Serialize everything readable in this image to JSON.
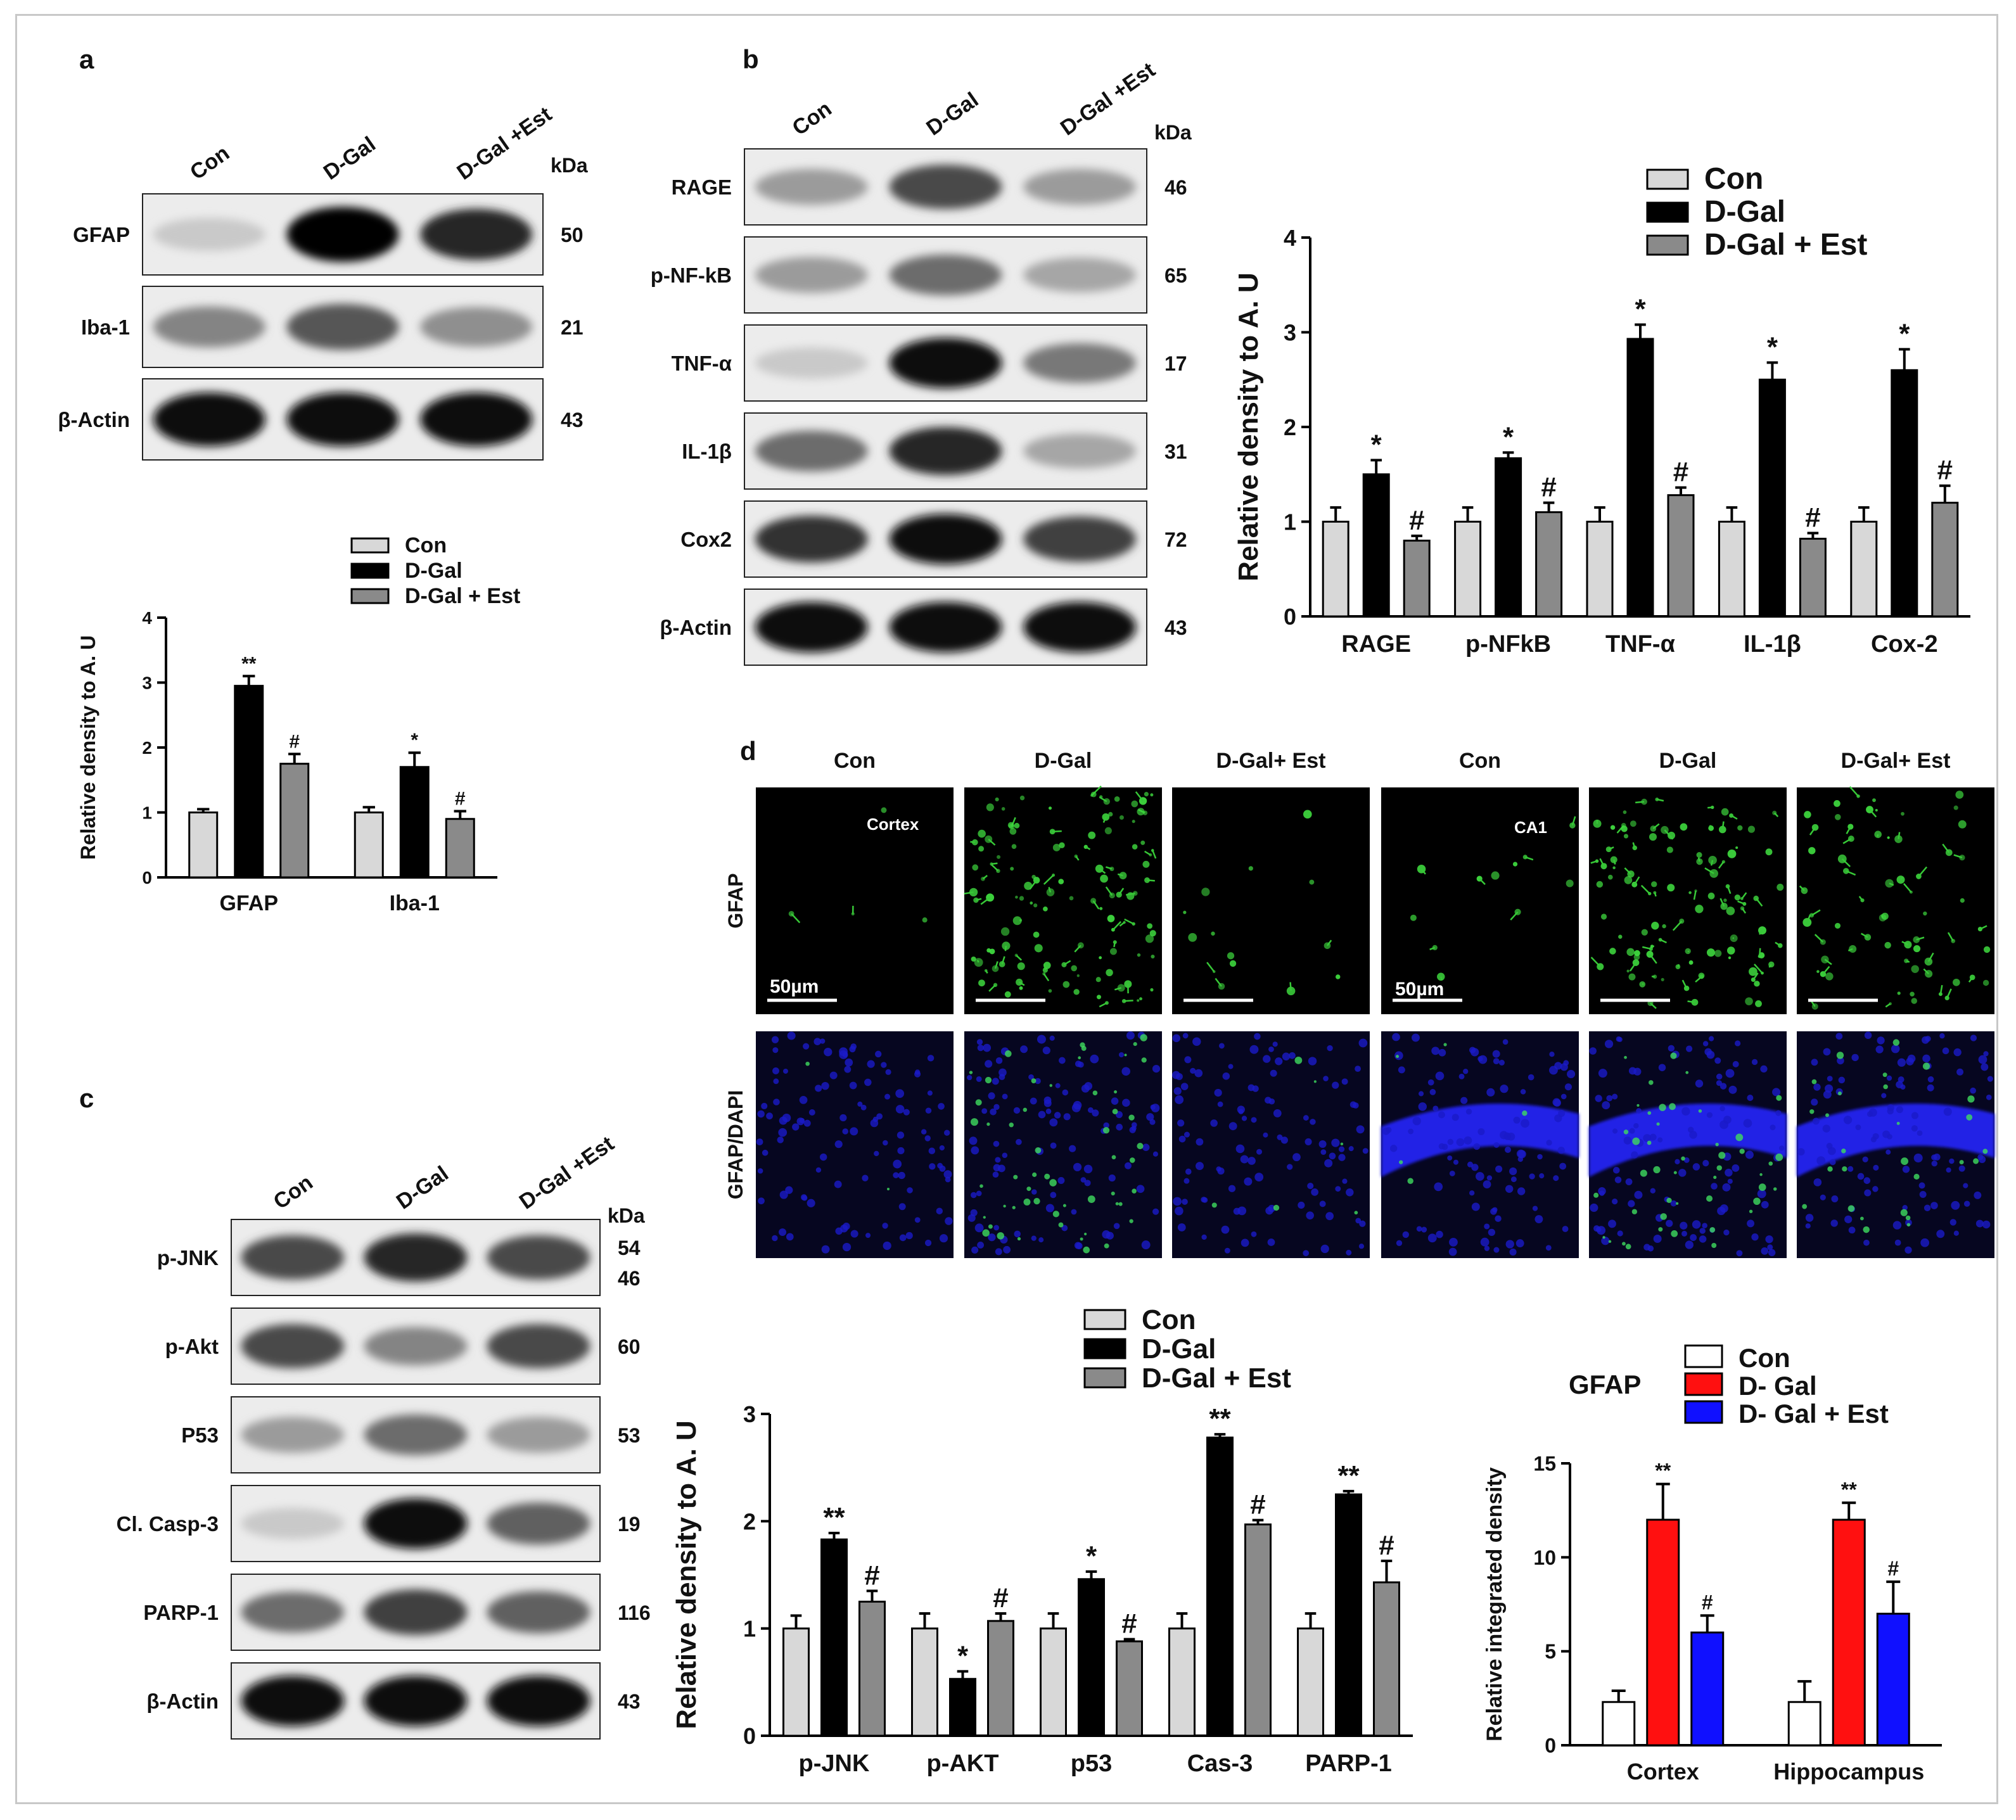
{
  "panel_letters": {
    "a": "a",
    "b": "b",
    "c": "c",
    "d": "d"
  },
  "units": {
    "kda": "kDa"
  },
  "lanes": [
    "Con",
    "D-Gal",
    "D-Gal +Est"
  ],
  "blot_a": {
    "rows": [
      {
        "label": "GFAP",
        "kda": "50",
        "intensity": [
          0.15,
          1.0,
          0.85
        ]
      },
      {
        "label": "Iba-1",
        "kda": "21",
        "intensity": [
          0.45,
          0.65,
          0.4
        ]
      },
      {
        "label": "β-Actin",
        "kda": "43",
        "intensity": [
          0.95,
          0.95,
          0.95
        ]
      }
    ]
  },
  "blot_b": {
    "rows": [
      {
        "label": "RAGE",
        "kda": "46",
        "intensity": [
          0.35,
          0.7,
          0.35
        ]
      },
      {
        "label": "p-NF-kB",
        "kda": "65",
        "intensity": [
          0.35,
          0.55,
          0.3
        ]
      },
      {
        "label": "TNF-α",
        "kda": "17",
        "intensity": [
          0.15,
          0.95,
          0.5
        ]
      },
      {
        "label": "IL-1β",
        "kda": "31",
        "intensity": [
          0.55,
          0.85,
          0.3
        ]
      },
      {
        "label": "Cox2",
        "kda": "72",
        "intensity": [
          0.8,
          0.95,
          0.75
        ]
      },
      {
        "label": "β-Actin",
        "kda": "43",
        "intensity": [
          0.95,
          0.95,
          0.95
        ]
      }
    ]
  },
  "blot_c": {
    "rows": [
      {
        "label": "p-JNK",
        "kda": "54",
        "kda2": "46",
        "intensity": [
          0.7,
          0.85,
          0.7
        ]
      },
      {
        "label": "p-Akt",
        "kda": "60",
        "intensity": [
          0.7,
          0.45,
          0.7
        ]
      },
      {
        "label": "P53",
        "kda": "53",
        "intensity": [
          0.35,
          0.55,
          0.35
        ]
      },
      {
        "label": "Cl. Casp-3",
        "kda": "19",
        "intensity": [
          0.15,
          0.95,
          0.6
        ]
      },
      {
        "label": "PARP-1",
        "kda": "116",
        "intensity": [
          0.55,
          0.75,
          0.6
        ]
      },
      {
        "label": "β-Actin",
        "kda": "43",
        "intensity": [
          0.95,
          0.95,
          0.95
        ]
      }
    ]
  },
  "micro": {
    "headers": [
      "Con",
      "D-Gal",
      "D-Gal+ Est",
      "Con",
      "D-Gal",
      "D-Gal+ Est"
    ],
    "row_labels": [
      "GFAP",
      "GFAP/DAPI"
    ],
    "region_labels": {
      "cortex": "Cortex",
      "ca1": "CA1"
    },
    "scale_bar": "50µm",
    "green_level": [
      0.03,
      0.9,
      0.1,
      0.08,
      0.75,
      0.45
    ]
  },
  "chart_data": [
    {
      "type": "bar",
      "categories": [
        "GFAP",
        "Iba-1"
      ],
      "series": [
        {
          "name": "Con",
          "values": [
            1.0,
            1.0
          ],
          "err": [
            0.05,
            0.08
          ]
        },
        {
          "name": "D-Gal",
          "values": [
            2.95,
            1.7
          ],
          "err": [
            0.15,
            0.22
          ]
        },
        {
          "name": "D-Gal + Est",
          "values": [
            1.75,
            0.9
          ],
          "err": [
            0.15,
            0.12
          ]
        }
      ],
      "annotations": [
        [
          "",
          "**",
          "#"
        ],
        [
          "",
          "*",
          "#"
        ]
      ],
      "ylabel": "Relative density to A. U",
      "ylim": [
        0,
        4
      ],
      "yticks": [
        "0",
        "1",
        "2",
        "3",
        "4"
      ],
      "colors": [
        "#d8d8d8",
        "#000000",
        "#8a8a8a"
      ]
    },
    {
      "type": "bar",
      "categories": [
        "RAGE",
        "p-NFkB",
        "TNF-α",
        "IL-1β",
        "Cox-2"
      ],
      "series": [
        {
          "name": "Con",
          "values": [
            1.0,
            1.0,
            1.0,
            1.0,
            1.0
          ],
          "err": [
            0.15,
            0.15,
            0.15,
            0.15,
            0.15
          ]
        },
        {
          "name": "D-Gal",
          "values": [
            1.5,
            1.67,
            2.93,
            2.5,
            2.6
          ],
          "err": [
            0.15,
            0.06,
            0.15,
            0.18,
            0.22
          ]
        },
        {
          "name": "D-Gal + Est",
          "values": [
            0.8,
            1.1,
            1.28,
            0.82,
            1.2
          ],
          "err": [
            0.05,
            0.1,
            0.08,
            0.06,
            0.18
          ]
        }
      ],
      "annotations": [
        [
          "",
          "*",
          "#"
        ],
        [
          "",
          "*",
          "#"
        ],
        [
          "",
          "*",
          "#"
        ],
        [
          "",
          "*",
          "#"
        ],
        [
          "",
          "*",
          "#"
        ]
      ],
      "ylabel": "Relative density to A. U",
      "ylim": [
        0,
        4
      ],
      "yticks": [
        "0",
        "1",
        "2",
        "3",
        "4"
      ],
      "colors": [
        "#d8d8d8",
        "#000000",
        "#8a8a8a"
      ]
    },
    {
      "type": "bar",
      "categories": [
        "p-JNK",
        "p-AKT",
        "p53",
        "Cas-3",
        "PARP-1"
      ],
      "series": [
        {
          "name": "Con",
          "values": [
            1.0,
            1.0,
            1.0,
            1.0,
            1.0
          ],
          "err": [
            0.12,
            0.14,
            0.14,
            0.14,
            0.14
          ]
        },
        {
          "name": "D-Gal",
          "values": [
            1.83,
            0.53,
            1.46,
            2.78,
            2.25
          ],
          "err": [
            0.06,
            0.07,
            0.07,
            0.03,
            0.03
          ]
        },
        {
          "name": "D-Gal + Est",
          "values": [
            1.25,
            1.07,
            0.88,
            1.97,
            1.43
          ],
          "err": [
            0.1,
            0.07,
            0.02,
            0.04,
            0.2
          ]
        }
      ],
      "annotations": [
        [
          "",
          "**",
          "#"
        ],
        [
          "",
          "*",
          "#"
        ],
        [
          "",
          "*",
          "#"
        ],
        [
          "",
          "**",
          "#"
        ],
        [
          "",
          "**",
          "#"
        ]
      ],
      "ylabel": "Relative density to A. U",
      "ylim": [
        0,
        3
      ],
      "yticks": [
        "0",
        "1",
        "2",
        "3"
      ],
      "colors": [
        "#d8d8d8",
        "#000000",
        "#8a8a8a"
      ]
    },
    {
      "type": "bar",
      "title": "GFAP",
      "categories": [
        "Cortex",
        "Hippocampus"
      ],
      "series": [
        {
          "name": "Con",
          "values": [
            2.3,
            2.3
          ],
          "err": [
            0.6,
            1.1
          ]
        },
        {
          "name": "D- Gal",
          "values": [
            12.0,
            12.0
          ],
          "err": [
            1.9,
            0.9
          ]
        },
        {
          "name": "D- Gal + Est",
          "values": [
            6.0,
            7.0
          ],
          "err": [
            0.9,
            1.7
          ]
        }
      ],
      "annotations": [
        [
          "",
          "**",
          "#"
        ],
        [
          "",
          "**",
          "#"
        ]
      ],
      "ylabel": "Relative integrated density",
      "ylim": [
        0,
        15
      ],
      "yticks": [
        "0",
        "5",
        "10",
        "15"
      ],
      "colors": [
        "#ffffff",
        "#ff1010",
        "#1010ff"
      ]
    }
  ]
}
